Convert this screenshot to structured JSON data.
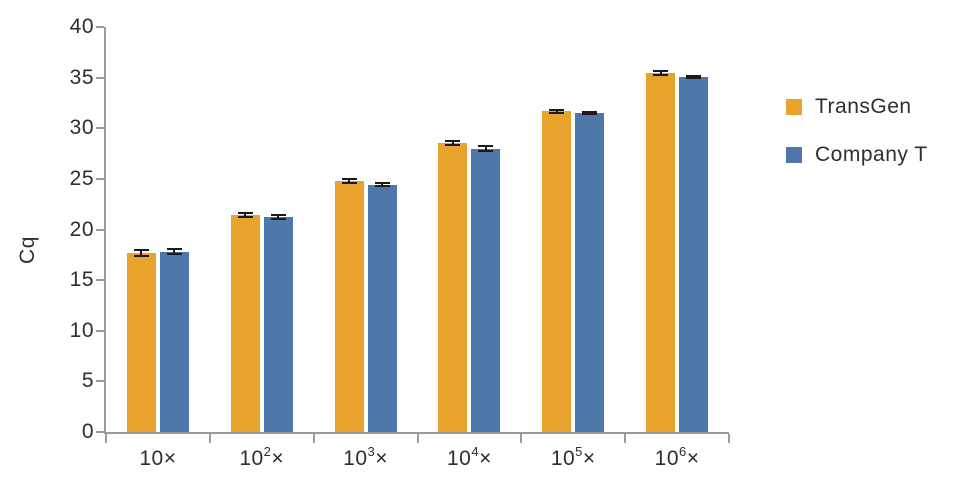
{
  "figure": {
    "background": "#ffffff"
  },
  "chart_data": {
    "type": "bar",
    "title": "",
    "xlabel": "",
    "ylabel": "Cq",
    "ylim": [
      0,
      40
    ],
    "yticks": [
      0,
      5,
      10,
      15,
      20,
      25,
      30,
      35,
      40
    ],
    "grid": false,
    "legend_position": "right",
    "axis_color": "#9b9b9b",
    "text_color": "#2e2e2e",
    "error_bar_color": "#1a1a1a",
    "categories": [
      {
        "label": "10×",
        "base": "10",
        "exp": "",
        "suffix": "×"
      },
      {
        "label": "10²×",
        "base": "10",
        "exp": "2",
        "suffix": "×"
      },
      {
        "label": "10³×",
        "base": "10",
        "exp": "3",
        "suffix": "×"
      },
      {
        "label": "10⁴×",
        "base": "10",
        "exp": "4",
        "suffix": "×"
      },
      {
        "label": "10⁵×",
        "base": "10",
        "exp": "5",
        "suffix": "×"
      },
      {
        "label": "10⁶×",
        "base": "10",
        "exp": "6",
        "suffix": "×"
      }
    ],
    "series": [
      {
        "name": "TransGen",
        "color": "#E8A32C",
        "values": [
          17.7,
          21.4,
          24.8,
          28.5,
          31.7,
          35.5
        ],
        "errors": [
          0.3,
          0.2,
          0.2,
          0.2,
          0.15,
          0.2
        ]
      },
      {
        "name": "Company T",
        "color": "#4C77A8",
        "values": [
          17.8,
          21.2,
          24.4,
          28.0,
          31.5,
          35.1
        ],
        "errors": [
          0.25,
          0.2,
          0.15,
          0.2,
          0.1,
          0.1
        ]
      }
    ]
  }
}
